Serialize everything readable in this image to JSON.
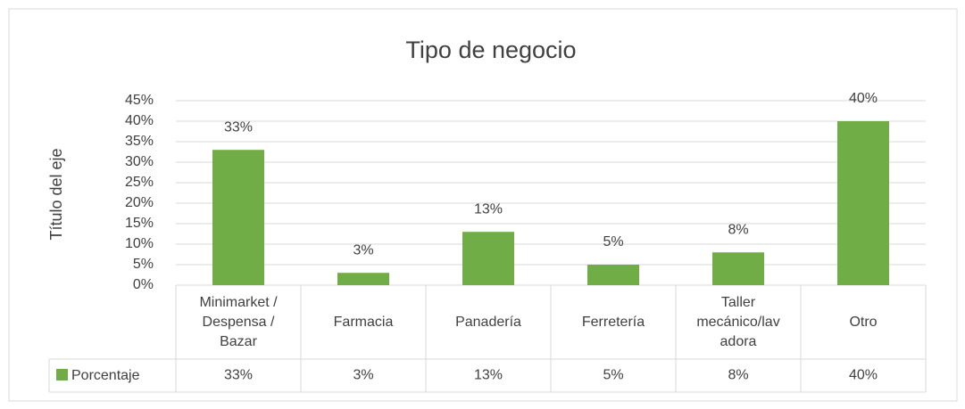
{
  "chart_data": {
    "type": "bar",
    "title": "Tipo de negocio",
    "y_axis_title": "Título del eje",
    "categories": [
      "Minimarket / Despensa / Bazar",
      "Farmacia",
      "Panadería",
      "Ferretería",
      "Taller mecánico/lavadora",
      "Otro"
    ],
    "series": [
      {
        "name": "Porcentaje",
        "color": "#70ad47",
        "values": [
          33,
          3,
          13,
          5,
          8,
          40
        ],
        "value_labels": [
          "33%",
          "3%",
          "13%",
          "5%",
          "8%",
          "40%"
        ]
      }
    ],
    "ylim": [
      0,
      45
    ],
    "yticks": [
      {
        "value": 0,
        "label": "0%"
      },
      {
        "value": 5,
        "label": "5%"
      },
      {
        "value": 10,
        "label": "10%"
      },
      {
        "value": 15,
        "label": "15%"
      },
      {
        "value": 20,
        "label": "20%"
      },
      {
        "value": 25,
        "label": "25%"
      },
      {
        "value": 30,
        "label": "30%"
      },
      {
        "value": 35,
        "label": "35%"
      },
      {
        "value": 40,
        "label": "40%"
      },
      {
        "value": 45,
        "label": "45%"
      }
    ],
    "grid": true
  }
}
